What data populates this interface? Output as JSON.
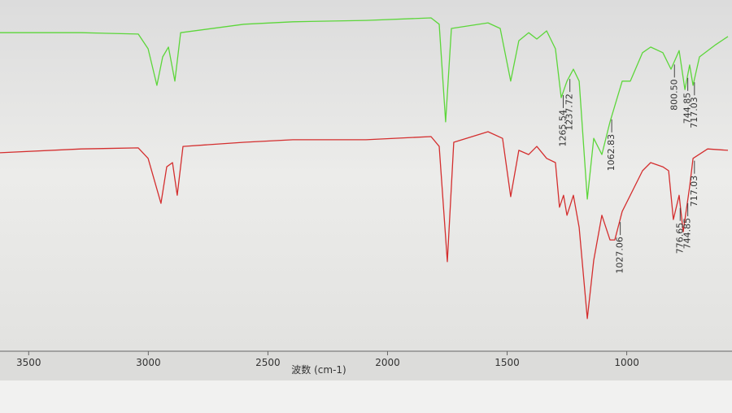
{
  "chart_data": {
    "type": "line",
    "x_label": "波数 (cm-1)",
    "xlim": [
      3620,
      560
    ],
    "xticks": [
      3500,
      3000,
      2500,
      2000,
      1500,
      1000
    ],
    "ylim": [
      0,
      100
    ],
    "series": [
      {
        "color": "#5cd63a",
        "x": [
          3620,
          3280,
          3042,
          3001,
          2964,
          2940,
          2916,
          2889,
          2865,
          2600,
          2396,
          2090,
          1818,
          1784,
          1757,
          1733,
          1580,
          1529,
          1485,
          1451,
          1410,
          1376,
          1335,
          1298,
          1274,
          1250,
          1223,
          1199,
          1165,
          1138,
          1104,
          1070,
          1019,
          985,
          934,
          900,
          849,
          815,
          781,
          757,
          737,
          723,
          696,
          628,
          577
        ],
        "values": [
          90.7,
          90.7,
          90.3,
          86.1,
          75.7,
          83.8,
          86.6,
          76.9,
          90.7,
          93.1,
          93.8,
          94.2,
          94.9,
          93.1,
          65.3,
          91.9,
          93.5,
          91.9,
          76.9,
          88.4,
          90.7,
          88.9,
          91.2,
          86.1,
          72.2,
          76.9,
          80.3,
          76.9,
          43.3,
          60.6,
          56.0,
          65.3,
          76.9,
          76.9,
          85.0,
          86.6,
          85.0,
          80.3,
          85.6,
          74.5,
          81.5,
          75.7,
          83.8,
          87.3,
          89.6
        ],
        "peaks": [
          {
            "value": 1265.54,
            "label": "1265.54"
          },
          {
            "value": 1237.72,
            "label": "1237.72"
          },
          {
            "value": 1062.83,
            "label": "1062.83"
          },
          {
            "value": 800.5,
            "label": "800.50"
          },
          {
            "value": 744.85,
            "label": "744.85"
          },
          {
            "value": 717.03,
            "label": "717.03"
          }
        ]
      },
      {
        "color": "#d42e2e",
        "x": [
          3620,
          3280,
          3042,
          3001,
          2947,
          2923,
          2899,
          2879,
          2855,
          2600,
          2396,
          2090,
          1818,
          1784,
          1750,
          1723,
          1580,
          1519,
          1485,
          1451,
          1410,
          1376,
          1335,
          1298,
          1281,
          1264,
          1250,
          1223,
          1199,
          1165,
          1138,
          1104,
          1070,
          1050,
          1019,
          934,
          900,
          849,
          825,
          805,
          781,
          764,
          737,
          723,
          662,
          577
        ],
        "values": [
          56.5,
          57.6,
          57.9,
          54.9,
          42.1,
          52.5,
          53.7,
          44.4,
          58.3,
          59.5,
          60.2,
          60.2,
          61.1,
          58.3,
          25.5,
          59.5,
          62.5,
          60.6,
          44.0,
          57.2,
          56.0,
          58.3,
          54.9,
          53.7,
          41.0,
          44.4,
          38.7,
          44.4,
          35.2,
          9.3,
          25.9,
          38.7,
          31.7,
          31.7,
          39.8,
          51.4,
          53.7,
          52.5,
          51.4,
          37.5,
          44.4,
          34.0,
          46.8,
          54.9,
          57.6,
          57.2
        ],
        "peaks": [
          {
            "value": 1027.06,
            "label": "1027.06"
          },
          {
            "value": 776.65,
            "label": "776.65"
          },
          {
            "value": 744.85,
            "label": "744.85"
          },
          {
            "value": 717.03,
            "label": "717.03"
          }
        ]
      }
    ]
  }
}
